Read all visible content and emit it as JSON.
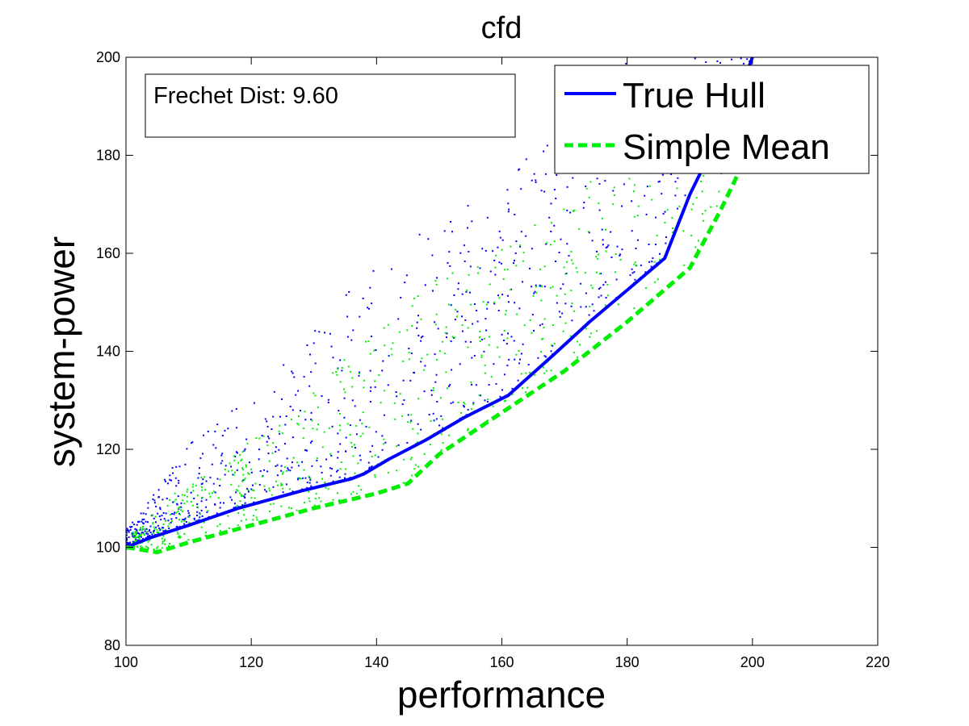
{
  "chart_data": {
    "type": "scatter",
    "title": "cfd",
    "xlabel": "performance",
    "ylabel": "system-power",
    "xlim": [
      100,
      220
    ],
    "ylim": [
      80,
      200
    ],
    "xticks": [
      100,
      120,
      140,
      160,
      180,
      200,
      220
    ],
    "yticks": [
      80,
      100,
      120,
      140,
      160,
      180,
      200
    ],
    "grid": false,
    "legend_position": "top-right",
    "annotation": "Frechet Dist: 9.60",
    "series": [
      {
        "name": "True Hull",
        "kind": "line",
        "style": "solid",
        "color": "#0000ff",
        "x": [
          100,
          104,
          110,
          118,
          128,
          136,
          138,
          142,
          148,
          154,
          161,
          168,
          174,
          180,
          186,
          190,
          195,
          198,
          200
        ],
        "y": [
          100,
          102,
          104.5,
          108,
          111.5,
          114,
          115,
          118,
          122,
          126.5,
          131,
          139,
          146,
          152.5,
          159,
          172,
          185,
          193,
          200
        ]
      },
      {
        "name": "Simple Mean",
        "kind": "line",
        "style": "dashed",
        "color": "#00ee00",
        "x": [
          100,
          105,
          110,
          120,
          130,
          140,
          145,
          150,
          160,
          170,
          180,
          190,
          195,
          198,
          200
        ],
        "y": [
          100,
          99,
          101,
          104.5,
          108,
          111,
          113,
          119,
          127.5,
          136,
          146,
          157,
          169,
          177,
          182
        ]
      },
      {
        "name": "",
        "kind": "scatter",
        "color": "#0000ff",
        "approx_count": 900,
        "x_range": [
          100,
          200
        ],
        "lower_boundary": "True Hull",
        "upper_boundary_x": [
          100,
          110,
          120,
          130,
          140,
          150,
          160,
          170,
          180,
          190,
          200
        ],
        "upper_boundary_y": [
          104,
          122,
          132,
          145,
          160,
          168,
          174,
          192,
          200,
          200,
          200
        ]
      },
      {
        "name": "",
        "kind": "scatter",
        "color": "#00ee00",
        "approx_count": 650,
        "x_range": [
          101,
          195
        ],
        "lower_boundary": "Simple Mean",
        "upper_boundary_x": [
          100,
          110,
          120,
          130,
          140,
          150,
          160,
          170,
          180,
          190,
          195
        ],
        "upper_boundary_y": [
          102,
          114,
          122,
          132,
          146,
          156,
          164,
          170,
          188,
          192,
          194
        ]
      }
    ]
  }
}
